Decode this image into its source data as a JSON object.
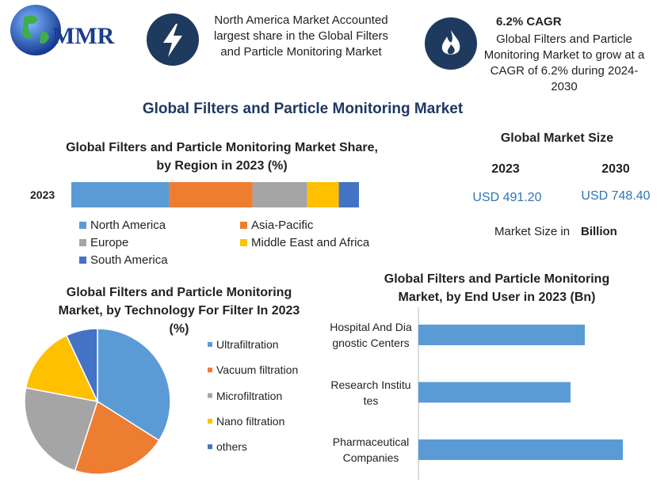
{
  "header": {
    "logo_text": "MMR",
    "highlight_1": "North America Market Accounted largest share in the Global Filters and Particle Monitoring Market",
    "highlight_2_title": "6.2% CAGR",
    "highlight_2_text": "Global Filters and Particle Monitoring Market to grow at a CAGR of 6.2% during 2024-2030"
  },
  "title": "Global Filters and Particle Monitoring Market",
  "market_size": {
    "title": "Global Market Size",
    "years": [
      "2023",
      "2030"
    ],
    "values": [
      "USD 491.20",
      "USD 748.40"
    ],
    "note": "Market Size in",
    "unit": "Billion"
  },
  "chart_data": [
    {
      "type": "stacked-bar",
      "orientation": "horizontal",
      "title": "Global Filters and Particle Monitoring Market Share, by Region in 2023 (%)",
      "categories": [
        "2023"
      ],
      "series": [
        {
          "name": "North America",
          "color": "#5b9bd5",
          "values": [
            34
          ]
        },
        {
          "name": "Asia-Pacific",
          "color": "#ed7d31",
          "values": [
            29
          ]
        },
        {
          "name": "Europe",
          "color": "#a5a5a5",
          "values": [
            19
          ]
        },
        {
          "name": "Middle East and Africa",
          "color": "#ffc000",
          "values": [
            11
          ]
        },
        {
          "name": "South America",
          "color": "#4472c4",
          "values": [
            7
          ]
        }
      ]
    },
    {
      "type": "pie",
      "title": "Global Filters and Particle Monitoring Market, by Technology For Filter In 2023 (%)",
      "categories": [
        "Ultrafiltration",
        "Vacuum filtration",
        "Microfiltration",
        "Nano filtration",
        "others"
      ],
      "values": [
        34,
        21,
        23,
        15,
        7
      ],
      "colors": [
        "#5b9bd5",
        "#ed7d31",
        "#a5a5a5",
        "#ffc000",
        "#4472c4"
      ]
    },
    {
      "type": "bar",
      "orientation": "horizontal",
      "title": "Global Filters and Particle Monitoring Market, by End User in 2023 (Bn)",
      "categories": [
        "Hospital And Diagnostic Centers",
        "Research Institutes",
        "Pharmaceutical Companies"
      ],
      "values": [
        156.3,
        142.9,
        192.0
      ],
      "color": "#5b9bd5"
    }
  ]
}
